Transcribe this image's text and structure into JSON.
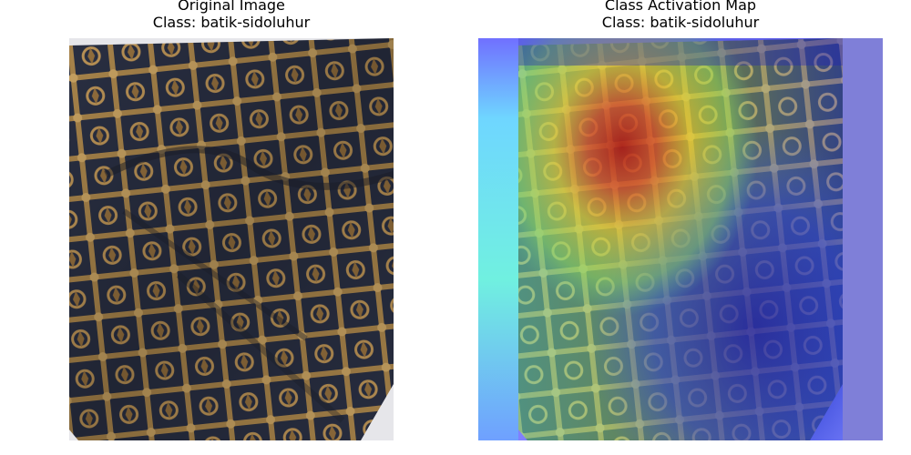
{
  "panels": [
    {
      "title_line1": "Original Image",
      "title_line2": "Class: batik-sidoluhur"
    },
    {
      "title_line1": "Class Activation Map",
      "title_line2": "Class: batik-sidoluhur"
    }
  ],
  "colors": {
    "fabric_dark": "#2a3042",
    "fabric_gold": "#b08a4e",
    "heatmap_hot": "#c0201a",
    "heatmap_warm": "#e8d030",
    "heatmap_mid": "#7ccf60",
    "heatmap_cool": "#3a3ad0"
  }
}
